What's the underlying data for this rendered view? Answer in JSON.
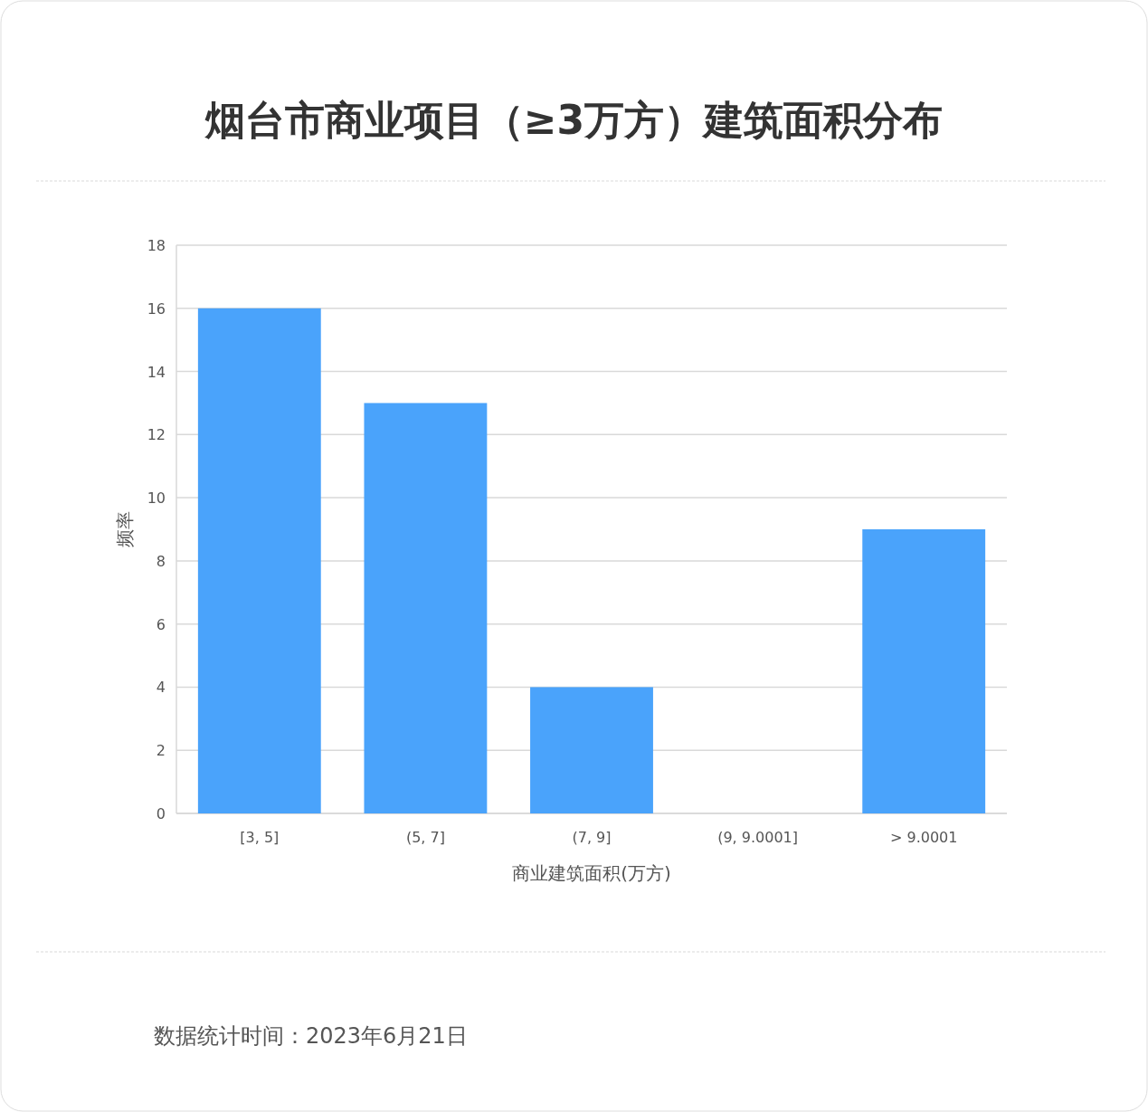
{
  "chart_data": {
    "type": "bar",
    "title": "烟台市商业项目（≥3万方）建筑面积分布",
    "xlabel": "商业建筑面积(万方)",
    "ylabel": "频率",
    "categories": [
      "[3, 5]",
      "(5, 7]",
      "(7, 9]",
      "(9, 9.0001]",
      "> 9.0001"
    ],
    "values": [
      16,
      13,
      4,
      0,
      9
    ],
    "color": "#4aa3fb",
    "ylim": [
      0,
      18
    ],
    "yticks": [
      0,
      2,
      4,
      6,
      8,
      10,
      12,
      14,
      16,
      18
    ],
    "grid": "y",
    "annotations": [
      "数据统计时间：2023年6月21日"
    ]
  }
}
